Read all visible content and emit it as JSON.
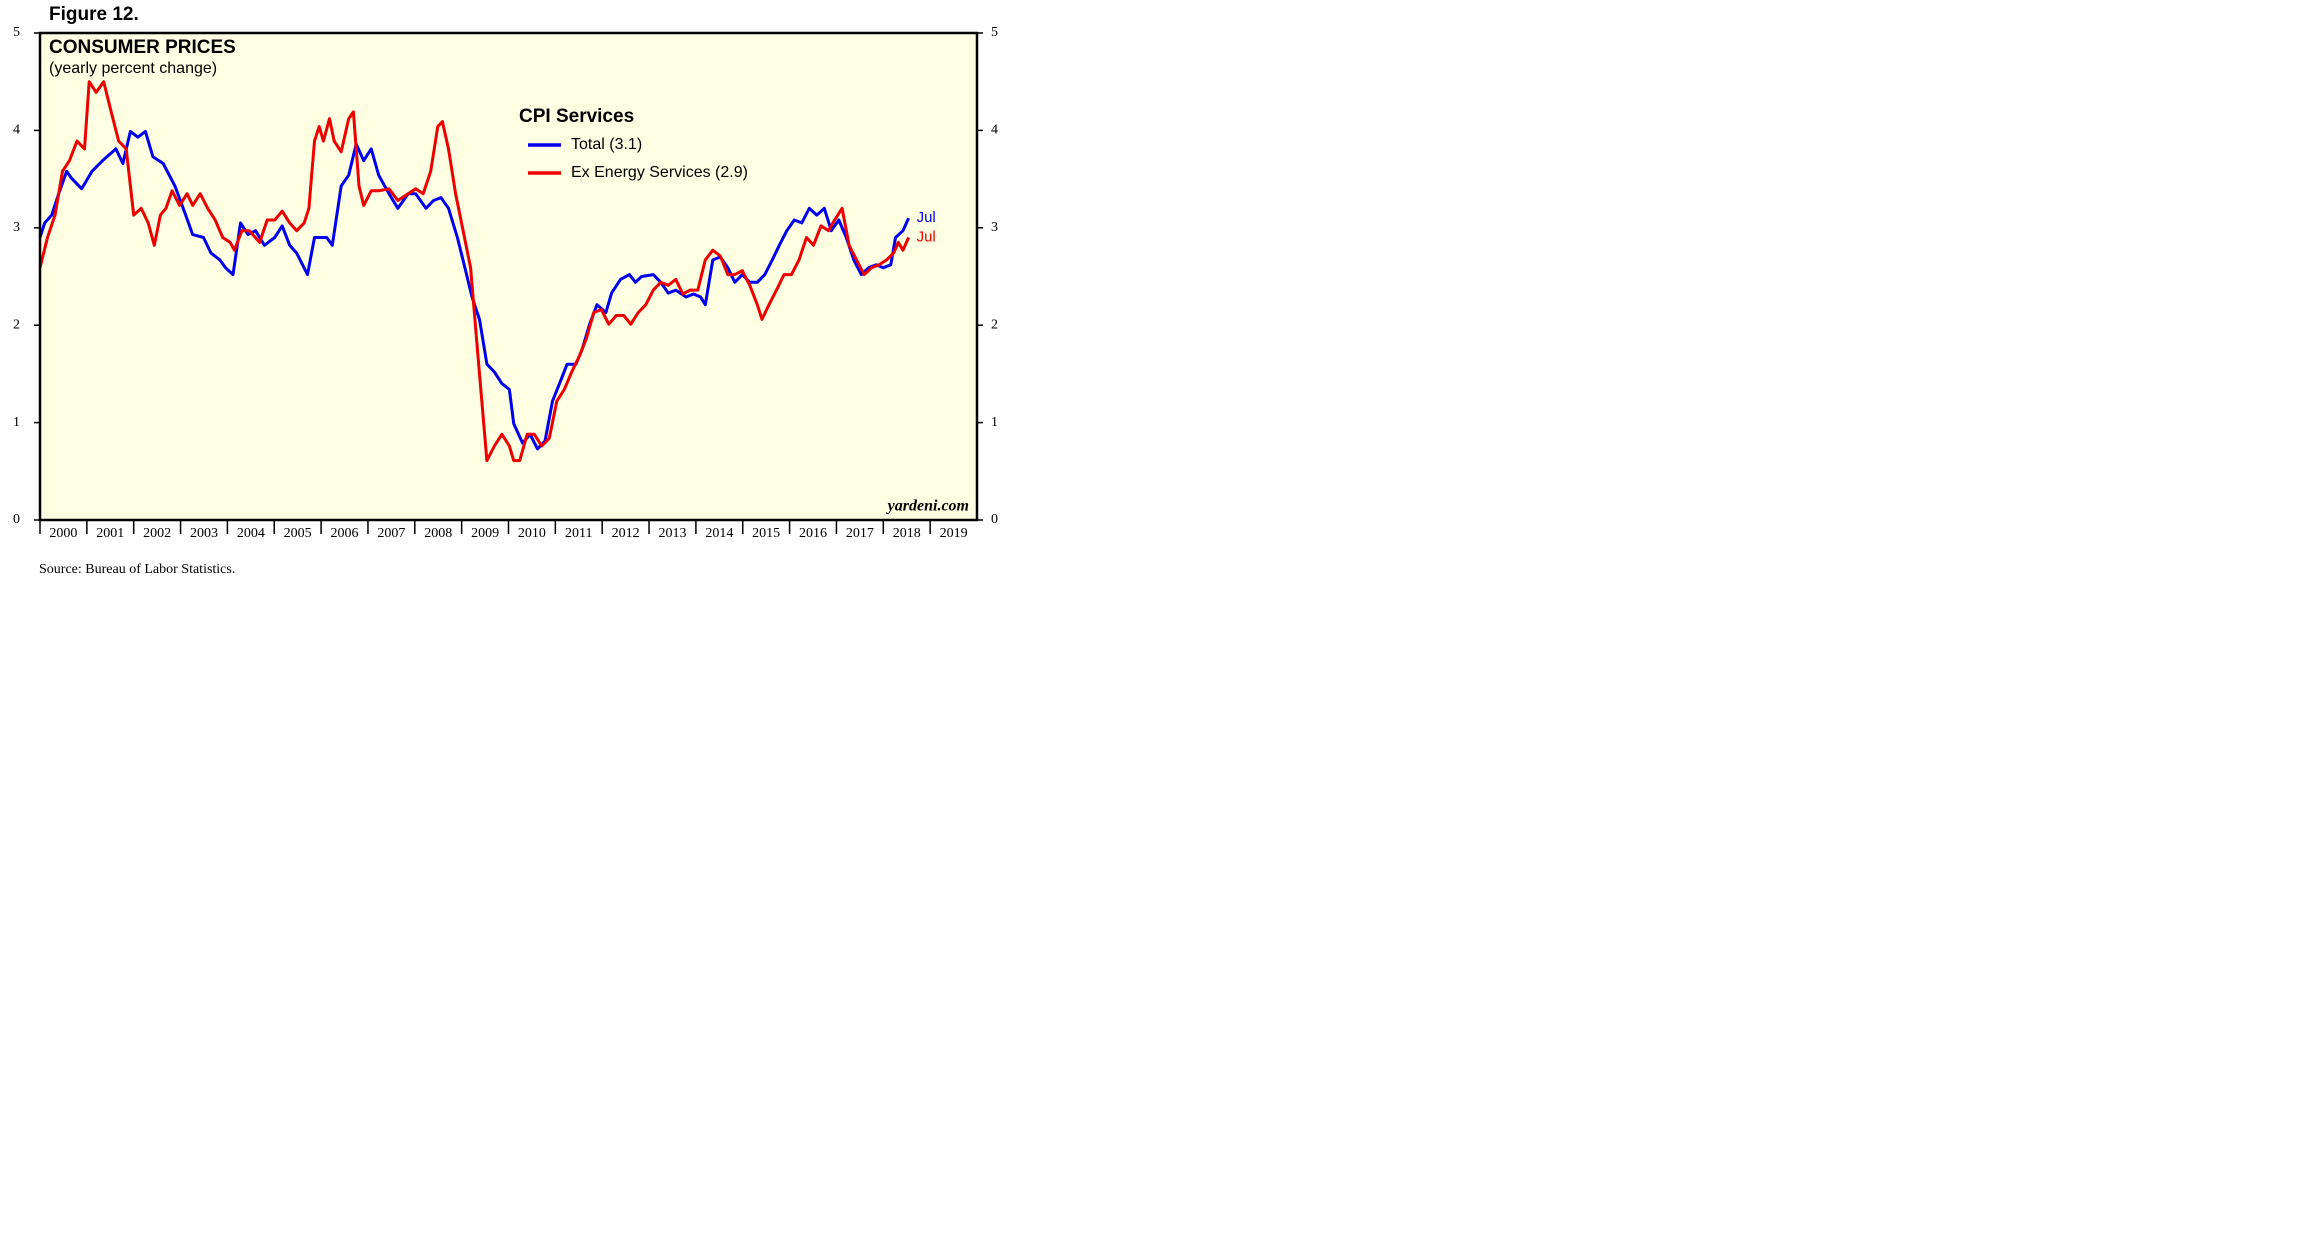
{
  "figure_label": "Figure 12.",
  "source": "Source: Bureau of Labor Statistics.",
  "chart_data": {
    "type": "line",
    "title": "CONSUMER PRICES",
    "subtitle": "(yearly percent change)",
    "legend_title": "CPI Services",
    "watermark": "yardeni.com",
    "background": "#fefee3",
    "xlim": [
      2000,
      2020
    ],
    "xticks": [
      2000,
      2001,
      2002,
      2003,
      2004,
      2005,
      2006,
      2007,
      2008,
      2009,
      2010,
      2011,
      2012,
      2013,
      2014,
      2015,
      2016,
      2017,
      2018,
      2019
    ],
    "ylim": [
      0,
      5
    ],
    "yticks": [
      0,
      1,
      2,
      3,
      4,
      5
    ],
    "y2lim": [
      0,
      5
    ],
    "y2ticks": [
      0,
      1,
      2,
      3,
      4,
      5
    ],
    "grid": false,
    "series": [
      {
        "name": "Total (3.1)",
        "color": "#0000ee",
        "end_label": "Jul",
        "x": [
          2000.0,
          2000.1,
          2000.25,
          2000.4,
          2000.57,
          2000.67,
          2000.89,
          2001.11,
          2001.36,
          2001.62,
          2001.77,
          2001.93,
          2002.09,
          2002.25,
          2002.41,
          2002.63,
          2002.88,
          2003.11,
          2003.26,
          2003.49,
          2003.65,
          2003.84,
          2003.96,
          2004.12,
          2004.28,
          2004.44,
          2004.6,
          2004.79,
          2005.01,
          2005.17,
          2005.33,
          2005.48,
          2005.71,
          2005.86,
          2006.12,
          2006.24,
          2006.43,
          2006.59,
          2006.75,
          2006.91,
          2007.07,
          2007.23,
          2007.45,
          2007.64,
          2007.86,
          2008.02,
          2008.24,
          2008.4,
          2008.56,
          2008.72,
          2008.91,
          2009.07,
          2009.22,
          2009.38,
          2009.54,
          2009.7,
          2009.86,
          2010.02,
          2010.11,
          2010.3,
          2010.46,
          2010.62,
          2010.78,
          2010.94,
          2011.13,
          2011.25,
          2011.44,
          2011.57,
          2011.73,
          2011.89,
          2012.08,
          2012.2,
          2012.39,
          2012.58,
          2012.71,
          2012.84,
          2013.09,
          2013.25,
          2013.41,
          2013.57,
          2013.79,
          2013.95,
          2014.1,
          2014.2,
          2014.36,
          2014.52,
          2014.68,
          2014.83,
          2014.99,
          2015.15,
          2015.31,
          2015.47,
          2015.63,
          2015.78,
          2015.94,
          2016.1,
          2016.26,
          2016.42,
          2016.58,
          2016.74,
          2016.89,
          2017.05,
          2017.21,
          2017.37,
          2017.53,
          2017.69,
          2017.85,
          2018.0,
          2018.16,
          2018.26,
          2018.42,
          2018.54
        ],
        "values": [
          2.9,
          3.05,
          3.13,
          3.35,
          3.58,
          3.51,
          3.4,
          3.58,
          3.7,
          3.81,
          3.66,
          3.99,
          3.93,
          3.99,
          3.73,
          3.66,
          3.43,
          3.13,
          2.93,
          2.9,
          2.74,
          2.67,
          2.59,
          2.52,
          3.05,
          2.93,
          2.97,
          2.82,
          2.9,
          3.02,
          2.82,
          2.74,
          2.52,
          2.9,
          2.9,
          2.82,
          3.43,
          3.54,
          3.86,
          3.69,
          3.81,
          3.54,
          3.35,
          3.2,
          3.35,
          3.35,
          3.2,
          3.28,
          3.31,
          3.2,
          2.9,
          2.59,
          2.29,
          2.06,
          1.6,
          1.52,
          1.4,
          1.34,
          0.99,
          0.79,
          0.88,
          0.73,
          0.81,
          1.22,
          1.45,
          1.6,
          1.6,
          1.75,
          2.01,
          2.21,
          2.13,
          2.33,
          2.47,
          2.52,
          2.44,
          2.5,
          2.52,
          2.44,
          2.33,
          2.36,
          2.29,
          2.32,
          2.29,
          2.21,
          2.67,
          2.7,
          2.59,
          2.44,
          2.52,
          2.44,
          2.44,
          2.52,
          2.67,
          2.82,
          2.97,
          3.08,
          3.05,
          3.2,
          3.13,
          3.2,
          2.97,
          3.08,
          2.9,
          2.67,
          2.52,
          2.59,
          2.62,
          2.59,
          2.62,
          2.9,
          2.97,
          3.1
        ]
      },
      {
        "name": "Ex Energy Services (2.9)",
        "color": "#ee0000",
        "end_label": "Jul",
        "x": [
          2000.0,
          2000.16,
          2000.32,
          2000.48,
          2000.63,
          2000.79,
          2000.95,
          2001.05,
          2001.2,
          2001.36,
          2001.52,
          2001.68,
          2001.84,
          2002.0,
          2002.16,
          2002.31,
          2002.44,
          2002.57,
          2002.69,
          2002.82,
          2002.98,
          2003.14,
          2003.26,
          2003.42,
          2003.58,
          2003.74,
          2003.9,
          2004.06,
          2004.15,
          2004.31,
          2004.47,
          2004.69,
          2004.85,
          2005.01,
          2005.17,
          2005.33,
          2005.48,
          2005.64,
          2005.74,
          2005.86,
          2005.96,
          2006.05,
          2006.18,
          2006.28,
          2006.43,
          2006.59,
          2006.69,
          2006.81,
          2006.91,
          2007.07,
          2007.23,
          2007.45,
          2007.64,
          2007.86,
          2008.02,
          2008.18,
          2008.34,
          2008.49,
          2008.59,
          2008.72,
          2008.87,
          2009.03,
          2009.19,
          2009.35,
          2009.54,
          2009.7,
          2009.86,
          2010.02,
          2010.11,
          2010.24,
          2010.4,
          2010.55,
          2010.71,
          2010.87,
          2011.03,
          2011.19,
          2011.35,
          2011.51,
          2011.66,
          2011.82,
          2011.98,
          2012.14,
          2012.3,
          2012.46,
          2012.61,
          2012.77,
          2012.93,
          2013.09,
          2013.25,
          2013.41,
          2013.57,
          2013.72,
          2013.88,
          2014.04,
          2014.2,
          2014.36,
          2014.52,
          2014.68,
          2014.83,
          2014.99,
          2015.15,
          2015.31,
          2015.41,
          2015.56,
          2015.72,
          2015.88,
          2016.04,
          2016.2,
          2016.36,
          2016.51,
          2016.67,
          2016.83,
          2016.96,
          2017.12,
          2017.27,
          2017.43,
          2017.59,
          2017.75,
          2017.91,
          2018.07,
          2018.22,
          2018.32,
          2018.42,
          2018.54
        ],
        "values": [
          2.59,
          2.9,
          3.13,
          3.58,
          3.69,
          3.89,
          3.81,
          4.5,
          4.39,
          4.5,
          4.19,
          3.89,
          3.81,
          3.13,
          3.2,
          3.05,
          2.82,
          3.13,
          3.2,
          3.38,
          3.23,
          3.35,
          3.23,
          3.35,
          3.2,
          3.08,
          2.9,
          2.85,
          2.77,
          2.97,
          2.97,
          2.85,
          3.08,
          3.08,
          3.17,
          3.05,
          2.97,
          3.05,
          3.2,
          3.89,
          4.04,
          3.89,
          4.12,
          3.89,
          3.78,
          4.12,
          4.19,
          3.43,
          3.23,
          3.38,
          3.38,
          3.4,
          3.28,
          3.35,
          3.4,
          3.35,
          3.58,
          4.04,
          4.09,
          3.81,
          3.35,
          2.97,
          2.59,
          1.68,
          0.61,
          0.76,
          0.88,
          0.76,
          0.61,
          0.61,
          0.88,
          0.88,
          0.76,
          0.84,
          1.22,
          1.34,
          1.52,
          1.68,
          1.86,
          2.13,
          2.16,
          2.01,
          2.1,
          2.1,
          2.01,
          2.13,
          2.21,
          2.36,
          2.44,
          2.41,
          2.47,
          2.32,
          2.36,
          2.36,
          2.67,
          2.77,
          2.71,
          2.52,
          2.52,
          2.56,
          2.41,
          2.21,
          2.06,
          2.21,
          2.36,
          2.52,
          2.52,
          2.67,
          2.9,
          2.82,
          3.02,
          2.97,
          3.08,
          3.2,
          2.82,
          2.67,
          2.52,
          2.59,
          2.62,
          2.67,
          2.74,
          2.85,
          2.77,
          2.9
        ]
      }
    ]
  }
}
